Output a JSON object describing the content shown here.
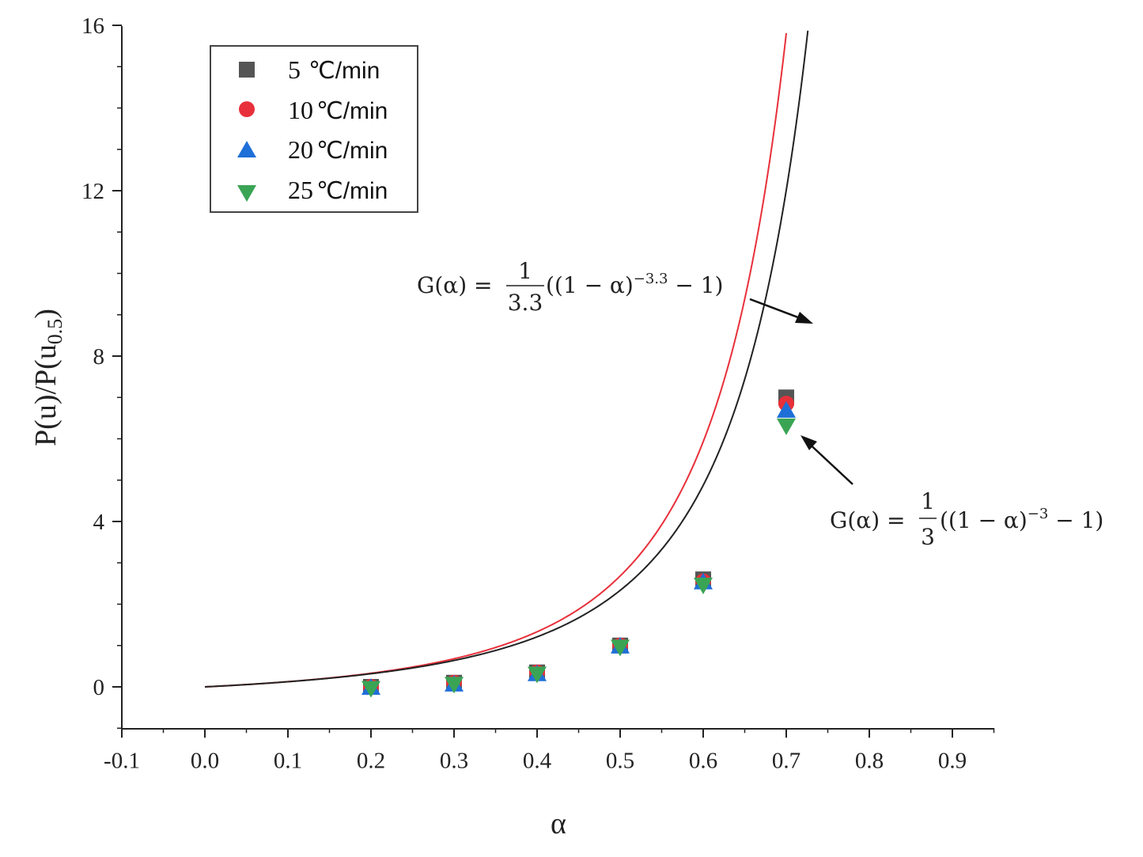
{
  "chart_data": {
    "type": "scatter",
    "title": "",
    "xlabel": "α",
    "ylabel": "P(u)/P(u",
    "ylabel_sub": "0.5",
    "ylabel_close": ")",
    "xlim": [
      -0.1,
      0.95
    ],
    "ylim": [
      -1,
      16
    ],
    "x_ticks": [
      -0.1,
      0.0,
      0.1,
      0.2,
      0.3,
      0.4,
      0.5,
      0.6,
      0.7,
      0.8,
      0.9
    ],
    "x_tick_labels": [
      "-0.1",
      "0.0",
      "0.1",
      "0.2",
      "0.3",
      "0.4",
      "0.5",
      "0.6",
      "0.7",
      "0.8",
      "0.9"
    ],
    "y_ticks": [
      0,
      4,
      8,
      12,
      16
    ],
    "y_tick_labels": [
      "0",
      "4",
      "8",
      "12",
      "16"
    ],
    "grid": false,
    "legend_position": "top-left",
    "series": [
      {
        "name": "5",
        "unit": "℃/min",
        "marker": "square",
        "color": "#555555",
        "x": [
          0.2,
          0.3,
          0.4,
          0.5,
          0.6,
          0.7
        ],
        "y": [
          0.0,
          0.1,
          0.35,
          1.0,
          2.6,
          7.0
        ]
      },
      {
        "name": "10",
        "unit": "℃/min",
        "marker": "circle",
        "color": "#e8303a",
        "x": [
          0.2,
          0.3,
          0.4,
          0.5,
          0.6,
          0.7
        ],
        "y": [
          0.0,
          0.1,
          0.35,
          1.0,
          2.55,
          6.85
        ]
      },
      {
        "name": "20",
        "unit": "℃/min",
        "marker": "triangle-up",
        "color": "#1f6fd8",
        "x": [
          0.2,
          0.3,
          0.4,
          0.5,
          0.6,
          0.7
        ],
        "y": [
          0.0,
          0.08,
          0.33,
          1.0,
          2.55,
          6.7
        ]
      },
      {
        "name": "25",
        "unit": "℃/min",
        "marker": "triangle-down",
        "color": "#3aa455",
        "x": [
          0.2,
          0.3,
          0.4,
          0.5,
          0.6,
          0.7
        ],
        "y": [
          -0.05,
          0.05,
          0.3,
          0.95,
          2.45,
          6.3
        ]
      }
    ],
    "curves": [
      {
        "name": "G(α) = 1/3.3((1−α)^−3.3 − 1)",
        "n": 3.3,
        "color": "#e8303a",
        "x_max": 0.78
      },
      {
        "name": "G(α) = 1/3((1−α)^−3 − 1)",
        "n": 3,
        "color": "#222222",
        "x_max": 0.8
      }
    ],
    "annotations": {
      "red": {
        "lhs": "G(α) = ",
        "num": "1",
        "den": "3.3",
        "rhs": "((1 − α)",
        "exp": "−3.3",
        "tail": " − 1)"
      },
      "black": {
        "lhs": "G(α) = ",
        "num": "1",
        "den": "3",
        "rhs": "((1 − α)",
        "exp": "−3",
        "tail": " − 1)"
      }
    }
  }
}
